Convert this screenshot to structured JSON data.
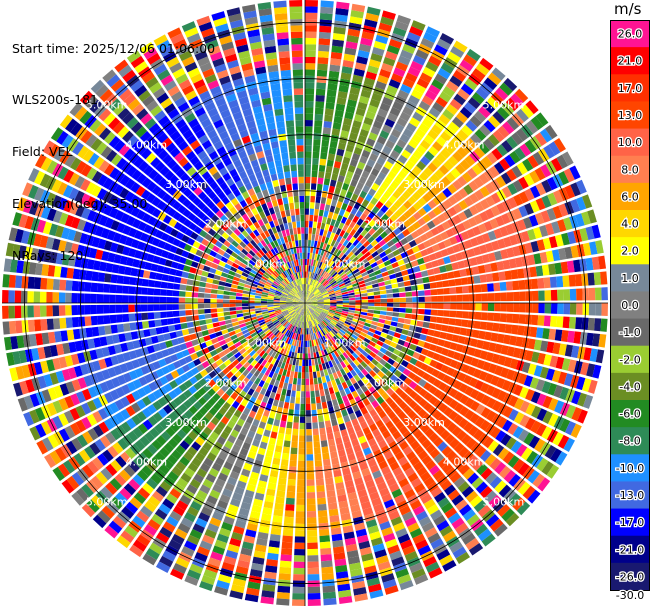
{
  "info": {
    "start_time": "Start time: 2025/12/06 01:06:00",
    "instrument": "WLS200s-181",
    "field": "Field: VEL",
    "elevation": "Elevation(deg): 35.00",
    "nrays": "NRays: 120"
  },
  "chart_data": {
    "type": "heatmap",
    "subtype": "ppi-polar",
    "title": "",
    "field": "VEL",
    "units": "m/s",
    "nrays": 120,
    "elevation_deg": 35.0,
    "max_range_km": 5.4,
    "range_rings_km": [
      1.0,
      2.0,
      3.0,
      4.0,
      5.0
    ],
    "range_ring_labels": [
      "1.00km",
      "2.00km",
      "3.00km",
      "4.00km",
      "5.00km"
    ],
    "pattern": {
      "coherent_range_km": [
        2.3,
        4.2
      ],
      "radial_velocity_amplitude_ms": 16,
      "positive_toward_azimuth_deg": 115,
      "noise_region": "inside ~2.2 km and beyond ~4.3 km"
    },
    "colorbar": {
      "bins": [
        {
          "label": "26.0",
          "color": "#ff1493"
        },
        {
          "label": "21.0",
          "color": "#ff0000"
        },
        {
          "label": "17.0",
          "color": "#ff3000"
        },
        {
          "label": "13.0",
          "color": "#ff4500"
        },
        {
          "label": "10.0",
          "color": "#ff6347"
        },
        {
          "label": "8.0",
          "color": "#ff7f50"
        },
        {
          "label": "6.0",
          "color": "#ffa500"
        },
        {
          "label": "4.0",
          "color": "#ffd700"
        },
        {
          "label": "2.0",
          "color": "#ffff00"
        },
        {
          "label": "1.0",
          "color": "#778899"
        },
        {
          "label": "0.0",
          "color": "#808080"
        },
        {
          "label": "-1.0",
          "color": "#696969"
        },
        {
          "label": "-2.0",
          "color": "#9acd32"
        },
        {
          "label": "-4.0",
          "color": "#6b8e23"
        },
        {
          "label": "-6.0",
          "color": "#228b22"
        },
        {
          "label": "-8.0",
          "color": "#2e8b57"
        },
        {
          "label": "-10.0",
          "color": "#1e90ff"
        },
        {
          "label": "-13.0",
          "color": "#4169e1"
        },
        {
          "label": "-17.0",
          "color": "#0000ff"
        },
        {
          "label": "-21.0",
          "color": "#00008b"
        },
        {
          "label": "-26.0",
          "color": "#191970"
        }
      ],
      "bottom_label": "-30.0"
    }
  }
}
